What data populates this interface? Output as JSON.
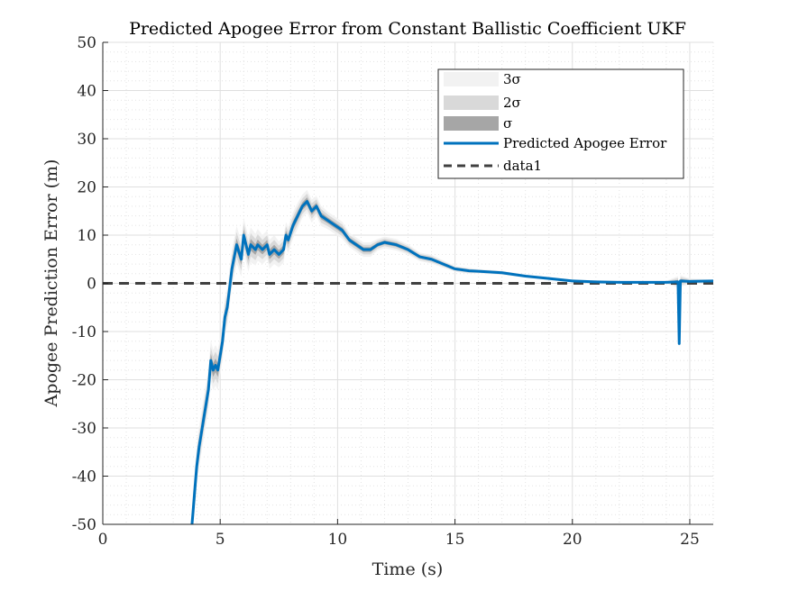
{
  "chart_data": {
    "type": "line",
    "title": "Predicted Apogee Error from Constant Ballistic Coefficient UKF",
    "xlabel": "Time (s)",
    "ylabel": "Apogee Prediction Error (m)",
    "xlim": [
      0,
      26
    ],
    "ylim": [
      -50,
      50
    ],
    "xticks": [
      0,
      5,
      10,
      15,
      20,
      25
    ],
    "yticks": [
      -50,
      -40,
      -30,
      -20,
      -10,
      0,
      10,
      20,
      30,
      40,
      50
    ],
    "xtick_labels": [
      "0",
      "5",
      "10",
      "15",
      "20",
      "25"
    ],
    "ytick_labels": [
      "-50",
      "-40",
      "-30",
      "-20",
      "-10",
      "0",
      "10",
      "20",
      "30",
      "40",
      "50"
    ],
    "grid": true,
    "minor_grid": true,
    "legend_position": "top-right",
    "legend": [
      "3σ",
      "2σ",
      "σ",
      "Predicted Apogee Error",
      "data1"
    ],
    "colors": {
      "line": "#0072BD",
      "reference": "#404040",
      "band_3sigma": "#f2f2f2",
      "band_2sigma": "#d9d9d9",
      "band_1sigma": "#a6a6a6"
    },
    "series": [
      {
        "name": "Predicted Apogee Error",
        "x": [
          3.8,
          3.9,
          4.0,
          4.1,
          4.2,
          4.3,
          4.4,
          4.5,
          4.6,
          4.7,
          4.8,
          4.9,
          5.0,
          5.1,
          5.2,
          5.3,
          5.5,
          5.7,
          5.9,
          6.0,
          6.1,
          6.2,
          6.3,
          6.5,
          6.6,
          6.8,
          7.0,
          7.1,
          7.3,
          7.5,
          7.7,
          7.8,
          7.9,
          8.1,
          8.3,
          8.5,
          8.7,
          8.9,
          9.1,
          9.3,
          9.6,
          9.9,
          10.2,
          10.5,
          10.8,
          11.1,
          11.4,
          11.7,
          12.0,
          12.5,
          13.0,
          13.5,
          14.0,
          14.5,
          15.0,
          15.3,
          15.6,
          16.0,
          17.0,
          18.0,
          19.0,
          20.0,
          21.0,
          22.0,
          23.0,
          24.0,
          24.5,
          24.55,
          24.6,
          25.0,
          26.0
        ],
        "y": [
          -50,
          -44,
          -38,
          -34,
          -31,
          -28,
          -25,
          -22,
          -16,
          -18,
          -17,
          -18,
          -15,
          -12,
          -7,
          -5,
          3,
          8,
          5,
          10,
          8,
          6,
          8,
          7,
          8,
          7,
          8,
          6,
          7,
          6,
          7,
          10,
          9,
          12,
          14,
          16,
          17,
          15,
          16,
          14,
          13,
          12,
          11,
          9,
          8,
          7,
          7,
          8,
          8.5,
          8,
          7,
          5.5,
          5,
          4,
          3,
          2.8,
          2.6,
          2.5,
          2.2,
          1.5,
          1.0,
          0.5,
          0.3,
          0.2,
          0.2,
          0.2,
          0.3,
          -12.5,
          0.5,
          0.4,
          0.5
        ],
        "sigma": [
          1.4,
          1.4,
          1.4,
          1.4,
          1.4,
          1.4,
          1.4,
          1.4,
          1.4,
          1.4,
          1.4,
          1.4,
          1.3,
          1.3,
          1.3,
          1.3,
          1.3,
          1.3,
          1.2,
          1.2,
          1.2,
          1.2,
          1.2,
          1.1,
          1.1,
          1.0,
          1.0,
          1.0,
          1.0,
          0.9,
          0.9,
          0.9,
          0.9,
          0.9,
          0.9,
          0.8,
          0.8,
          0.8,
          0.7,
          0.7,
          0.6,
          0.6,
          0.6,
          0.5,
          0.5,
          0.5,
          0.5,
          0.4,
          0.4,
          0.4,
          0.35,
          0.3,
          0.3,
          0.25,
          0.2,
          0.2,
          0.2,
          0.15,
          0.15,
          0.1,
          0.1,
          0.1,
          0.1,
          0.1,
          0.1,
          0.1,
          0.4,
          0.4,
          0.4,
          0.2,
          0.1
        ]
      },
      {
        "name": "data1",
        "x": [
          0,
          26
        ],
        "y": [
          0,
          0
        ]
      }
    ]
  }
}
